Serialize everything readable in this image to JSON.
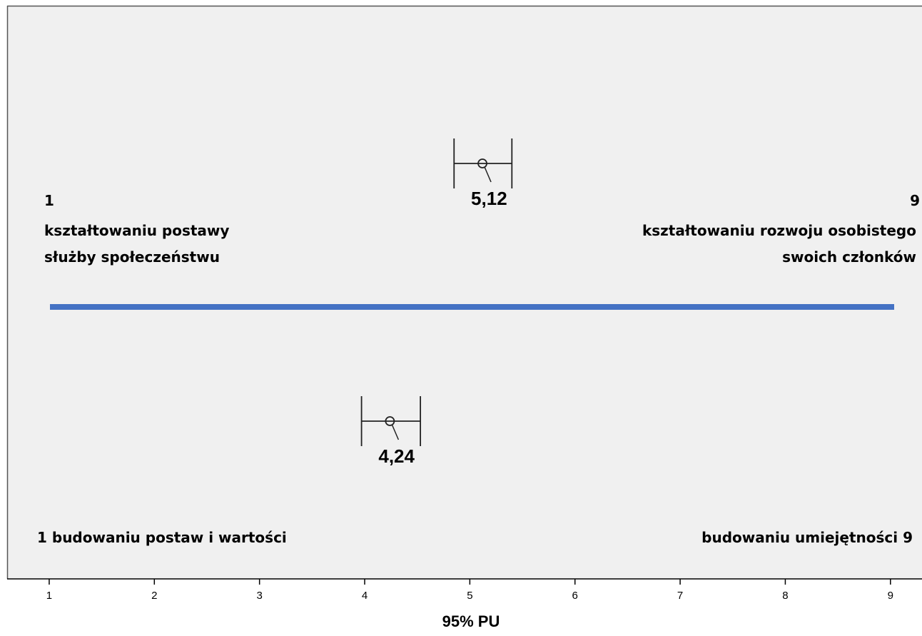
{
  "chart_data": {
    "type": "scatter",
    "xlabel": "95% PU",
    "xlim": [
      0.6,
      9.3
    ],
    "xticks": [
      "1",
      "2",
      "3",
      "4",
      "5",
      "6",
      "7",
      "8",
      "9"
    ],
    "grid": false,
    "scale_colors": {
      "plot_background": "#f0f0f0",
      "divider": "#4472c4"
    },
    "points": [
      {
        "label": "5,12",
        "mean": 5.12,
        "ci_low": 4.85,
        "ci_high": 5.4
      },
      {
        "label": "4,24",
        "mean": 4.24,
        "ci_low": 3.97,
        "ci_high": 4.53
      }
    ],
    "annotations": {
      "top_left_number": "1",
      "top_left_line1": "kształtowaniu postawy",
      "top_left_line2": "służby społeczeństwu",
      "top_right_number": "9",
      "top_right_line1": "kształtowaniu rozwoju osobistego",
      "top_right_line2": "swoich członków",
      "bottom_left": "1 budowaniu postaw i wartości",
      "bottom_right": "budowaniu umiejętności 9"
    }
  }
}
